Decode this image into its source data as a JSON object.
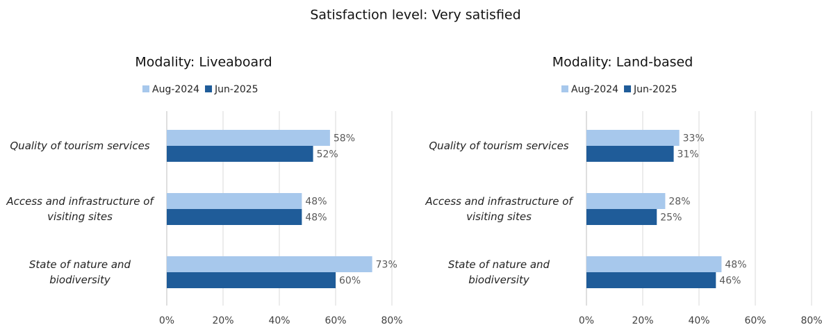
{
  "title": "Satisfaction level: Very satisfied",
  "chart_data": [
    {
      "type": "bar",
      "orientation": "horizontal",
      "title": "Modality: Liveaboard",
      "categories": [
        "Quality of tourism services",
        "Access and infrastructure of visiting sites",
        "State of nature and biodiversity"
      ],
      "series": [
        {
          "name": "Aug-2024",
          "color": "#a7c8ec",
          "values": [
            58,
            48,
            73
          ],
          "value_labels": [
            "58%",
            "48%",
            "73%"
          ]
        },
        {
          "name": "Jun-2025",
          "color": "#1f5c99",
          "values": [
            52,
            48,
            60
          ],
          "value_labels": [
            "52%",
            "48%",
            "60%"
          ]
        }
      ],
      "xlim": [
        0,
        80
      ],
      "xticks": [
        {
          "value": 0,
          "label": "0%"
        },
        {
          "value": 20,
          "label": "20%"
        },
        {
          "value": 40,
          "label": "40%"
        },
        {
          "value": 60,
          "label": "60%"
        },
        {
          "value": 80,
          "label": "80%"
        }
      ],
      "grid": true,
      "legend": "top"
    },
    {
      "type": "bar",
      "orientation": "horizontal",
      "title": "Modality: Land-based",
      "categories": [
        "Quality of tourism services",
        "Access and infrastructure of visiting sites",
        "State of nature and biodiversity"
      ],
      "series": [
        {
          "name": "Aug-2024",
          "color": "#a7c8ec",
          "values": [
            33,
            28,
            48
          ],
          "value_labels": [
            "33%",
            "28%",
            "48%"
          ]
        },
        {
          "name": "Jun-2025",
          "color": "#1f5c99",
          "values": [
            31,
            25,
            46
          ],
          "value_labels": [
            "31%",
            "25%",
            "46%"
          ]
        }
      ],
      "xlim": [
        0,
        80
      ],
      "xticks": [
        {
          "value": 0,
          "label": "0%"
        },
        {
          "value": 20,
          "label": "20%"
        },
        {
          "value": 40,
          "label": "40%"
        },
        {
          "value": 60,
          "label": "60%"
        },
        {
          "value": 80,
          "label": "80%"
        }
      ],
      "grid": true,
      "legend": "top"
    }
  ]
}
